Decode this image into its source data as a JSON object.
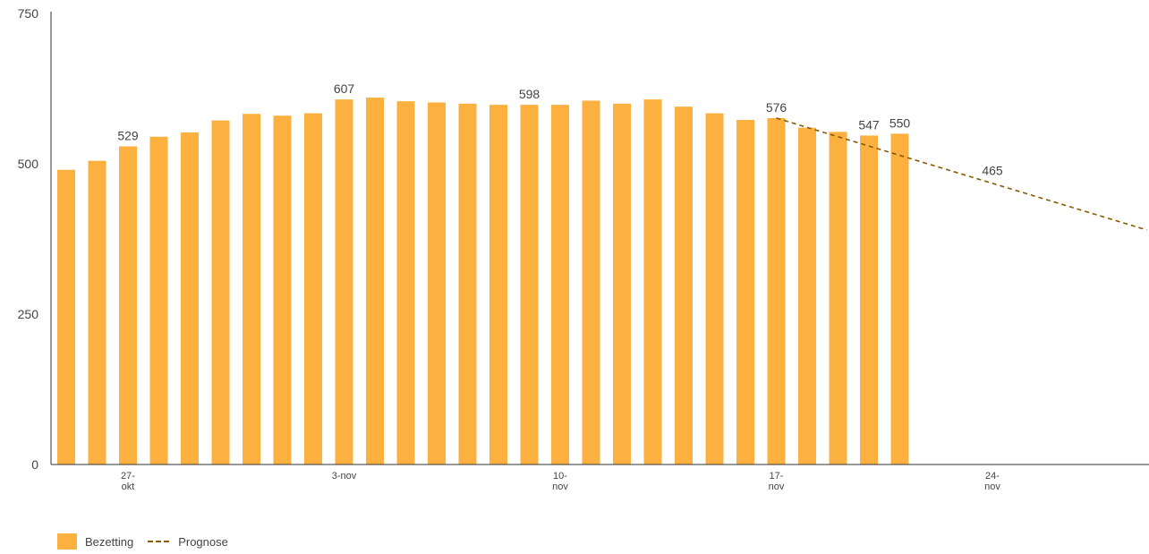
{
  "chart_data": {
    "type": "bar",
    "title": "",
    "xlabel": "",
    "ylabel": "",
    "ylim": [
      0,
      750
    ],
    "y_ticks": [
      "0",
      "250",
      "500",
      "750"
    ],
    "x_ticks": [
      {
        "day": 27,
        "lines": [
          "27-",
          "okt"
        ]
      },
      {
        "day": 34,
        "lines": [
          "3-nov"
        ]
      },
      {
        "day": 41,
        "lines": [
          "10-",
          "nov"
        ]
      },
      {
        "day": 48,
        "lines": [
          "17-",
          "nov"
        ]
      },
      {
        "day": 55,
        "lines": [
          "24-",
          "nov"
        ]
      }
    ],
    "series": [
      {
        "name": "Bezetting",
        "type": "bar",
        "color": "#fbb040",
        "day_start": 25,
        "values": [
          490,
          505,
          529,
          545,
          552,
          572,
          583,
          580,
          584,
          607,
          610,
          604,
          602,
          600,
          598,
          598,
          598,
          605,
          600,
          607,
          595,
          584,
          573,
          576,
          560,
          553,
          547,
          550
        ],
        "labels": {
          "2": "529",
          "9": "607",
          "15": "598",
          "23": "576",
          "26": "547",
          "27": "550"
        }
      },
      {
        "name": "Prognose",
        "type": "line",
        "style": "dashed",
        "color": "#8a5a00",
        "points": [
          [
            48,
            576
          ],
          [
            60,
            390
          ]
        ],
        "annotations": [
          {
            "day": 55,
            "value": 465,
            "label": "465"
          }
        ]
      }
    ],
    "grid": false,
    "legend": "bottom-left"
  }
}
